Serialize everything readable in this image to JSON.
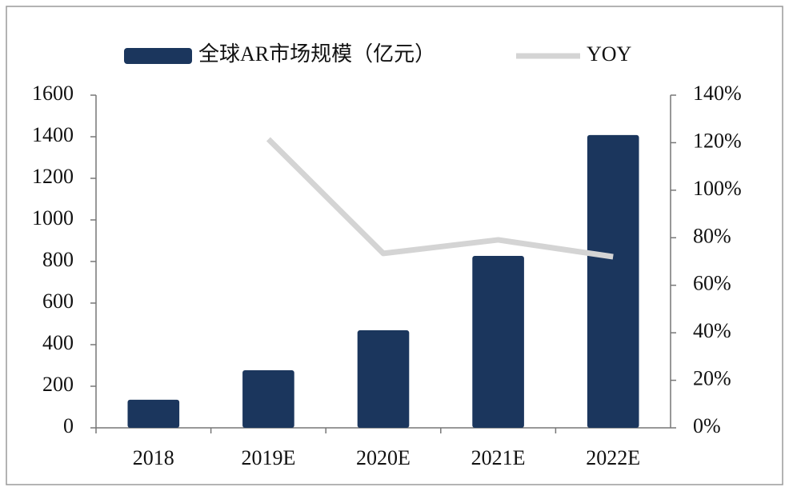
{
  "chart_data": {
    "type": "bar-line",
    "categories": [
      "2018",
      "2019E",
      "2020E",
      "2021E",
      "2022E"
    ],
    "series": [
      {
        "name": "全球AR市场规模（亿元）",
        "type": "bar",
        "color": "#1b365d",
        "values": [
          135,
          277,
          469,
          827,
          1408
        ]
      },
      {
        "name": "YOY",
        "type": "line",
        "axis": "y2",
        "color": "#d4d4d4",
        "values": [
          null,
          121.5,
          73.4,
          79.1,
          72
        ]
      }
    ],
    "ylim": [
      0,
      1600
    ],
    "yticks": [
      0,
      200,
      400,
      600,
      800,
      1000,
      1200,
      1400,
      1600
    ],
    "y2lim": [
      0,
      140
    ],
    "y2ticks": [
      {
        "value": 0,
        "label": "0%"
      },
      {
        "value": 20,
        "label": "20%"
      },
      {
        "value": 40,
        "label": "40%"
      },
      {
        "value": 60,
        "label": "60%"
      },
      {
        "value": 80,
        "label": "80%"
      },
      {
        "value": 100,
        "label": "100%"
      },
      {
        "value": 120,
        "label": "120%"
      },
      {
        "value": 140,
        "label": "140%"
      }
    ]
  }
}
